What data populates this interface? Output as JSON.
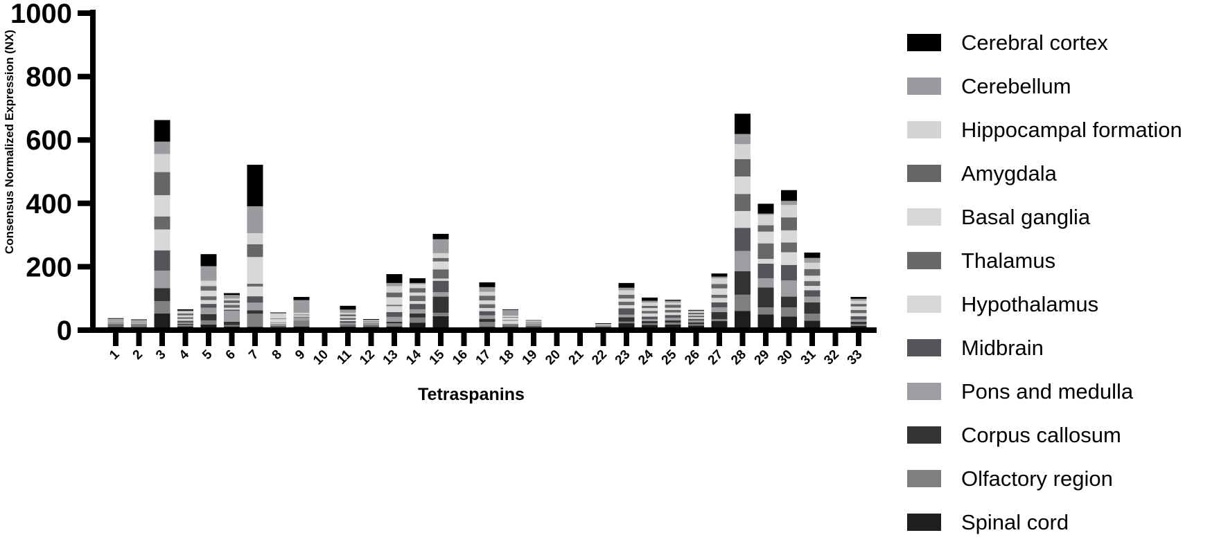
{
  "chart_data": {
    "type": "bar",
    "stacked": true,
    "title": "",
    "xlabel": "Tetraspanins",
    "ylabel": "Consensus Normalized Expression (NX)",
    "ylim": [
      0,
      1000
    ],
    "yticks": [
      0,
      200,
      400,
      600,
      800,
      1000
    ],
    "grid": false,
    "legend_position": "right",
    "categories": [
      "1",
      "2",
      "3",
      "4",
      "5",
      "6",
      "7",
      "8",
      "9",
      "10",
      "11",
      "12",
      "13",
      "14",
      "15",
      "16",
      "17",
      "18",
      "19",
      "20",
      "21",
      "22",
      "23",
      "24",
      "25",
      "26",
      "27",
      "28",
      "29",
      "30",
      "31",
      "32",
      "33"
    ],
    "series": [
      {
        "name": "Cerebral cortex",
        "color": "#000000",
        "values": [
          2,
          2,
          68,
          4,
          38,
          6,
          131,
          2,
          10,
          0,
          12,
          2,
          28,
          15,
          17,
          0,
          15,
          2,
          1,
          0,
          0,
          2,
          15,
          10,
          3,
          2,
          10,
          64,
          31,
          34,
          17,
          0,
          6
        ]
      },
      {
        "name": "Cerebellum",
        "color": "#9b9b9f",
        "values": [
          2,
          2,
          39,
          3,
          46,
          11,
          85,
          1,
          40,
          0,
          10,
          2,
          10,
          4,
          44,
          0,
          15,
          18,
          2,
          0,
          0,
          1,
          8,
          6,
          6,
          3,
          5,
          32,
          4,
          13,
          15,
          0,
          6
        ]
      },
      {
        "name": "Hippocampal formation",
        "color": "#d4d4d4",
        "values": [
          2,
          2,
          57,
          6,
          17,
          6,
          35,
          16,
          5,
          0,
          5,
          2,
          20,
          12,
          15,
          0,
          12,
          4,
          2,
          0,
          0,
          1,
          14,
          10,
          7,
          4,
          18,
          47,
          33,
          39,
          20,
          0,
          10
        ]
      },
      {
        "name": "Amygdala",
        "color": "#666666",
        "values": [
          2,
          2,
          73,
          6,
          14,
          8,
          40,
          2,
          2,
          0,
          6,
          2,
          15,
          14,
          11,
          0,
          15,
          2,
          2,
          0,
          0,
          1,
          12,
          7,
          9,
          5,
          14,
          55,
          20,
          41,
          21,
          0,
          8
        ]
      },
      {
        "name": "Basal ganglia",
        "color": "#d8d8d8",
        "values": [
          2,
          2,
          67,
          6,
          18,
          6,
          84,
          10,
          2,
          0,
          5,
          2,
          24,
          10,
          25,
          0,
          12,
          8,
          2,
          0,
          0,
          1,
          10,
          9,
          7,
          4,
          20,
          55,
          37,
          38,
          17,
          0,
          11
        ]
      },
      {
        "name": "Thalamus",
        "color": "#686868",
        "values": [
          2,
          2,
          41,
          5,
          12,
          9,
          9,
          2,
          1,
          0,
          6,
          2,
          4,
          17,
          29,
          0,
          12,
          2,
          2,
          0,
          0,
          1,
          11,
          8,
          8,
          5,
          10,
          54,
          49,
          31,
          15,
          0,
          10
        ]
      },
      {
        "name": "Hypothalamus",
        "color": "#d8d8d8",
        "values": [
          2,
          2,
          66,
          6,
          12,
          6,
          31,
          4,
          3,
          0,
          4,
          2,
          19,
          9,
          7,
          0,
          10,
          10,
          2,
          0,
          0,
          1,
          10,
          10,
          8,
          5,
          14,
          53,
          15,
          40,
          14,
          0,
          10
        ]
      },
      {
        "name": "Midbrain",
        "color": "#54545a",
        "values": [
          2,
          2,
          64,
          6,
          12,
          4,
          20,
          2,
          2,
          0,
          6,
          2,
          15,
          17,
          36,
          0,
          13,
          2,
          2,
          0,
          0,
          1,
          20,
          8,
          9,
          6,
          16,
          73,
          46,
          49,
          20,
          0,
          10
        ]
      },
      {
        "name": "Pons and medulla",
        "color": "#9e9ea2",
        "values": [
          4,
          3,
          55,
          4,
          20,
          34,
          24,
          3,
          10,
          0,
          5,
          3,
          15,
          13,
          14,
          0,
          11,
          2,
          3,
          0,
          0,
          1,
          8,
          6,
          8,
          5,
          15,
          64,
          29,
          51,
          18,
          0,
          7
        ]
      },
      {
        "name": "Corpus callosum",
        "color": "#333333",
        "values": [
          3,
          2,
          41,
          3,
          20,
          11,
          11,
          2,
          1,
          0,
          2,
          2,
          5,
          13,
          51,
          0,
          10,
          2,
          2,
          0,
          0,
          1,
          14,
          7,
          7,
          6,
          22,
          74,
          63,
          34,
          36,
          0,
          8
        ]
      },
      {
        "name": "Olfactory region",
        "color": "#808080",
        "values": [
          4,
          3,
          39,
          5,
          13,
          4,
          41,
          2,
          17,
          0,
          4,
          3,
          10,
          16,
          11,
          0,
          15,
          3,
          2,
          0,
          0,
          1,
          5,
          5,
          6,
          4,
          6,
          51,
          22,
          29,
          22,
          0,
          5
        ]
      },
      {
        "name": "Spinal cord",
        "color": "#1e1e1e",
        "values": [
          2,
          1,
          44,
          3,
          9,
          3,
          2,
          1,
          3,
          0,
          3,
          2,
          3,
          15,
          35,
          0,
          2,
          2,
          1,
          0,
          0,
          1,
          13,
          8,
          9,
          6,
          20,
          52,
          41,
          34,
          21,
          0,
          5
        ]
      }
    ]
  },
  "axes": {
    "y_title": "Consensus Normalized Expression (NX)",
    "x_title": "Tetraspanins",
    "y_tick_labels": [
      "0",
      "200",
      "400",
      "600",
      "800",
      "1000"
    ]
  },
  "legend": {
    "items": [
      {
        "label": "Cerebral cortex",
        "color": "#000000"
      },
      {
        "label": "Cerebellum",
        "color": "#9b9b9f"
      },
      {
        "label": "Hippocampal formation",
        "color": "#d4d4d4"
      },
      {
        "label": "Amygdala",
        "color": "#666666"
      },
      {
        "label": "Basal ganglia",
        "color": "#d8d8d8"
      },
      {
        "label": "Thalamus",
        "color": "#686868"
      },
      {
        "label": "Hypothalamus",
        "color": "#d8d8d8"
      },
      {
        "label": "Midbrain",
        "color": "#54545a"
      },
      {
        "label": "Pons and medulla",
        "color": "#9e9ea2"
      },
      {
        "label": "Corpus callosum",
        "color": "#333333"
      },
      {
        "label": "Olfactory region",
        "color": "#808080"
      },
      {
        "label": "Spinal cord",
        "color": "#1e1e1e"
      }
    ]
  }
}
